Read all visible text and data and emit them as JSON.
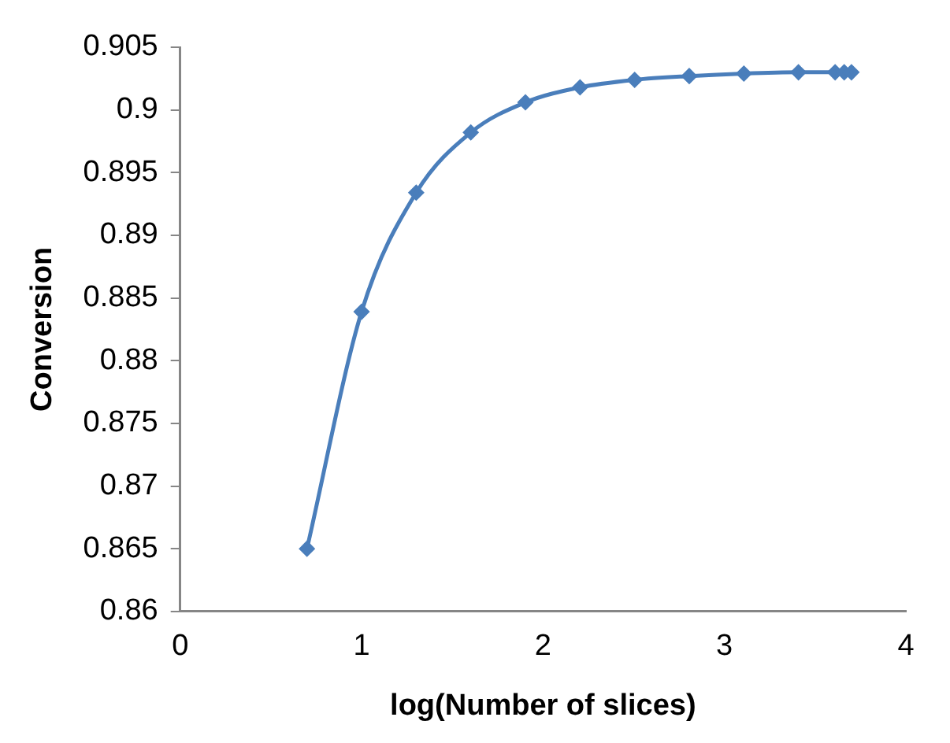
{
  "chart_data": {
    "type": "line",
    "xlabel": "log(Number of slices)",
    "ylabel": "Conversion",
    "x": [
      0.699,
      1.0,
      1.301,
      1.602,
      1.903,
      2.204,
      2.505,
      2.806,
      3.107,
      3.408,
      3.61,
      3.66,
      3.7
    ],
    "series": [
      {
        "color": "#4a7ebb",
        "values": [
          0.865,
          0.8839,
          0.8934,
          0.8982,
          0.9006,
          0.9018,
          0.9024,
          0.9027,
          0.9029,
          0.903,
          0.903,
          0.903,
          0.903
        ]
      }
    ],
    "xlim": [
      0,
      4
    ],
    "xticks": [
      0,
      1,
      2,
      3,
      4
    ],
    "ylim": [
      0.86,
      0.905
    ],
    "yticks": [
      0.86,
      0.865,
      0.87,
      0.875,
      0.88,
      0.885,
      0.89,
      0.895,
      0.9,
      0.905
    ],
    "grid": false,
    "legend": false,
    "marker": "diamond",
    "line_style": "solid"
  }
}
